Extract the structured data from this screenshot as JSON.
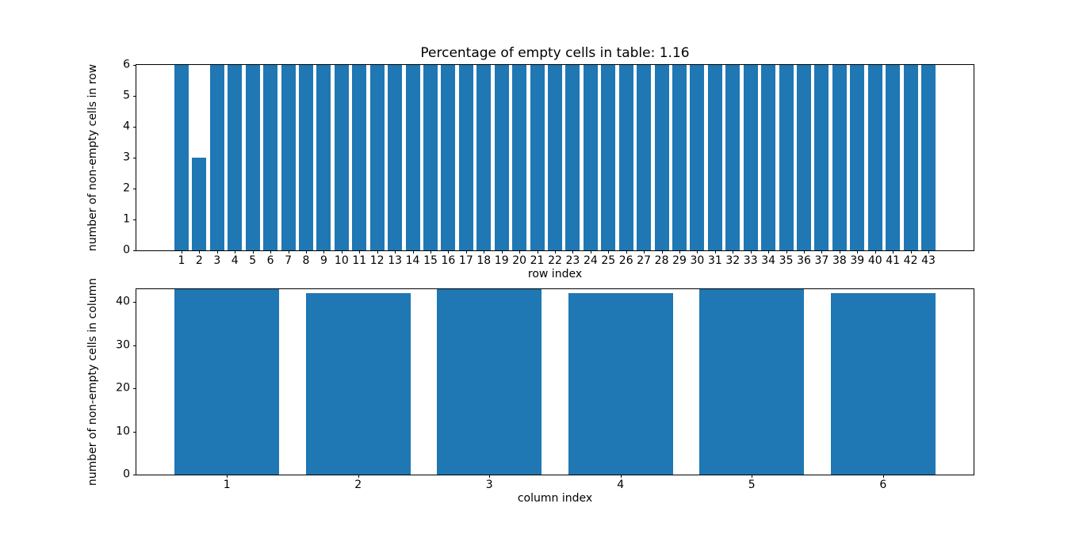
{
  "figure": {
    "background_color": "#ffffff",
    "bar_color": "#1f77b4",
    "spine_color": "#000000",
    "text_color": "#000000"
  },
  "chart_data": [
    {
      "type": "bar",
      "title": "Percentage of empty cells in table: 1.16",
      "xlabel": "row index",
      "ylabel": "number of non-empty cells in row",
      "categories": [
        "1",
        "2",
        "3",
        "4",
        "5",
        "6",
        "7",
        "8",
        "9",
        "10",
        "11",
        "12",
        "13",
        "14",
        "15",
        "16",
        "17",
        "18",
        "19",
        "20",
        "21",
        "22",
        "23",
        "24",
        "25",
        "26",
        "27",
        "28",
        "29",
        "30",
        "31",
        "32",
        "33",
        "34",
        "35",
        "36",
        "37",
        "38",
        "39",
        "40",
        "41",
        "42",
        "43"
      ],
      "values": [
        6,
        3,
        6,
        6,
        6,
        6,
        6,
        6,
        6,
        6,
        6,
        6,
        6,
        6,
        6,
        6,
        6,
        6,
        6,
        6,
        6,
        6,
        6,
        6,
        6,
        6,
        6,
        6,
        6,
        6,
        6,
        6,
        6,
        6,
        6,
        6,
        6,
        6,
        6,
        6,
        6,
        6,
        6
      ],
      "bar_width": 0.8,
      "xlim": [
        -1.54,
        45.54
      ],
      "ylim": [
        0,
        6
      ],
      "yticks": [
        0,
        1,
        2,
        3,
        4,
        5,
        6
      ],
      "grid": false,
      "legend": null
    },
    {
      "type": "bar",
      "title": "",
      "xlabel": "column index",
      "ylabel": "number of non-empty cells in column",
      "categories": [
        "1",
        "2",
        "3",
        "4",
        "5",
        "6"
      ],
      "values": [
        43,
        42,
        43,
        42,
        43,
        42
      ],
      "bar_width": 0.8,
      "xlim": [
        0.31,
        6.69
      ],
      "ylim": [
        0,
        43
      ],
      "yticks": [
        0,
        10,
        20,
        30,
        40
      ],
      "grid": false,
      "legend": null
    }
  ]
}
